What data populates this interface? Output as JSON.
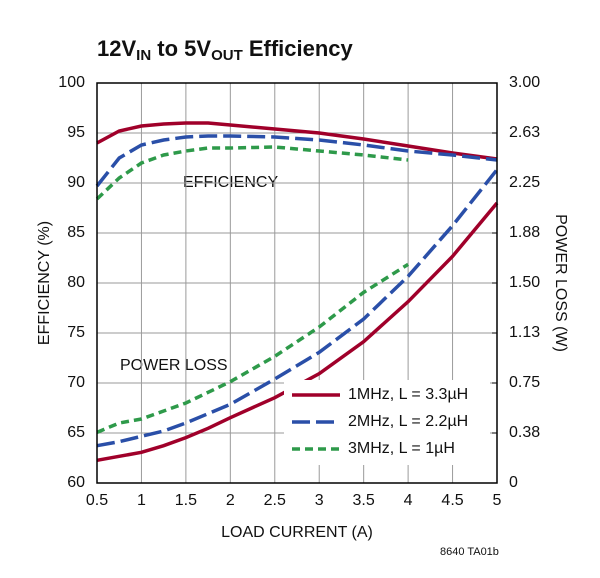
{
  "chart_data": {
    "type": "line",
    "title": [
      "12V",
      "IN",
      " to 5V",
      "OUT",
      " Efficiency"
    ],
    "xlabel": "LOAD CURRENT (A)",
    "ylabel": "EFFICIENCY (%)",
    "y2label": "POWER LOSS (W)",
    "annotations": [
      "EFFICIENCY",
      "POWER LOSS",
      "8640 TA01b"
    ],
    "x": [
      0.5,
      0.75,
      1,
      1.25,
      1.5,
      1.75,
      2,
      2.5,
      3,
      3.5,
      4,
      4.5,
      5
    ],
    "xlim": [
      0.5,
      5
    ],
    "xticks": [
      0.5,
      1,
      1.5,
      2,
      2.5,
      3,
      3.5,
      4,
      4.5,
      5
    ],
    "ylim": [
      60,
      100
    ],
    "yticks": [
      60,
      65,
      70,
      75,
      80,
      85,
      90,
      95,
      100
    ],
    "y2lim": [
      0,
      3
    ],
    "y2ticks": [
      0,
      {
        "value": 0.375,
        "label": "0.38"
      },
      0.75,
      {
        "value": 1.125,
        "label": "1.13"
      },
      {
        "value": 1.5,
        "label": "1.50"
      },
      {
        "value": 1.875,
        "label": "1.88"
      },
      2.25,
      {
        "value": 2.625,
        "label": "2.63"
      },
      {
        "value": 3,
        "label": "3.00"
      }
    ],
    "grid": true,
    "legend": "lower right",
    "series": [
      {
        "name": "1MHz, L = 3.3µH",
        "color": "#a0002a",
        "dash": "none",
        "values": [
          94,
          95.2,
          95.7,
          95.9,
          96,
          96,
          95.8,
          95.4,
          95,
          94.4,
          93.7,
          93,
          92.4
        ]
      },
      {
        "name": "2MHz, L = 2.2µH",
        "color": "#2a4fa8",
        "dash": "18 6",
        "values": [
          89.7,
          92.5,
          93.8,
          94.3,
          94.6,
          94.7,
          94.7,
          94.6,
          94.3,
          93.8,
          93.2,
          92.8,
          92.3
        ]
      },
      {
        "name": "3MHz, L = 1µH",
        "color": "#2e9a4a",
        "dash": "8 5",
        "values": [
          88.4,
          90.5,
          92,
          92.8,
          93.2,
          93.5,
          93.5,
          93.6,
          93.2,
          92.8,
          92.3,
          null,
          null
        ]
      },
      {
        "color": "#a0002a",
        "dash": "none",
        "axis": "y2",
        "values": [
          0.17,
          0.2,
          0.23,
          0.28,
          0.34,
          0.41,
          0.49,
          0.64,
          0.82,
          1.06,
          1.36,
          1.7,
          2.1
        ]
      },
      {
        "color": "#2a4fa8",
        "dash": "18 6",
        "axis": "y2",
        "values": [
          0.28,
          0.31,
          0.35,
          0.39,
          0.45,
          0.52,
          0.59,
          0.78,
          0.98,
          1.23,
          1.55,
          1.93,
          2.35
        ]
      },
      {
        "color": "#2e9a4a",
        "dash": "8 5",
        "axis": "y2",
        "values": [
          0.38,
          0.45,
          0.48,
          0.54,
          0.6,
          0.68,
          0.76,
          0.95,
          1.17,
          1.43,
          1.64,
          null,
          null
        ]
      }
    ]
  }
}
